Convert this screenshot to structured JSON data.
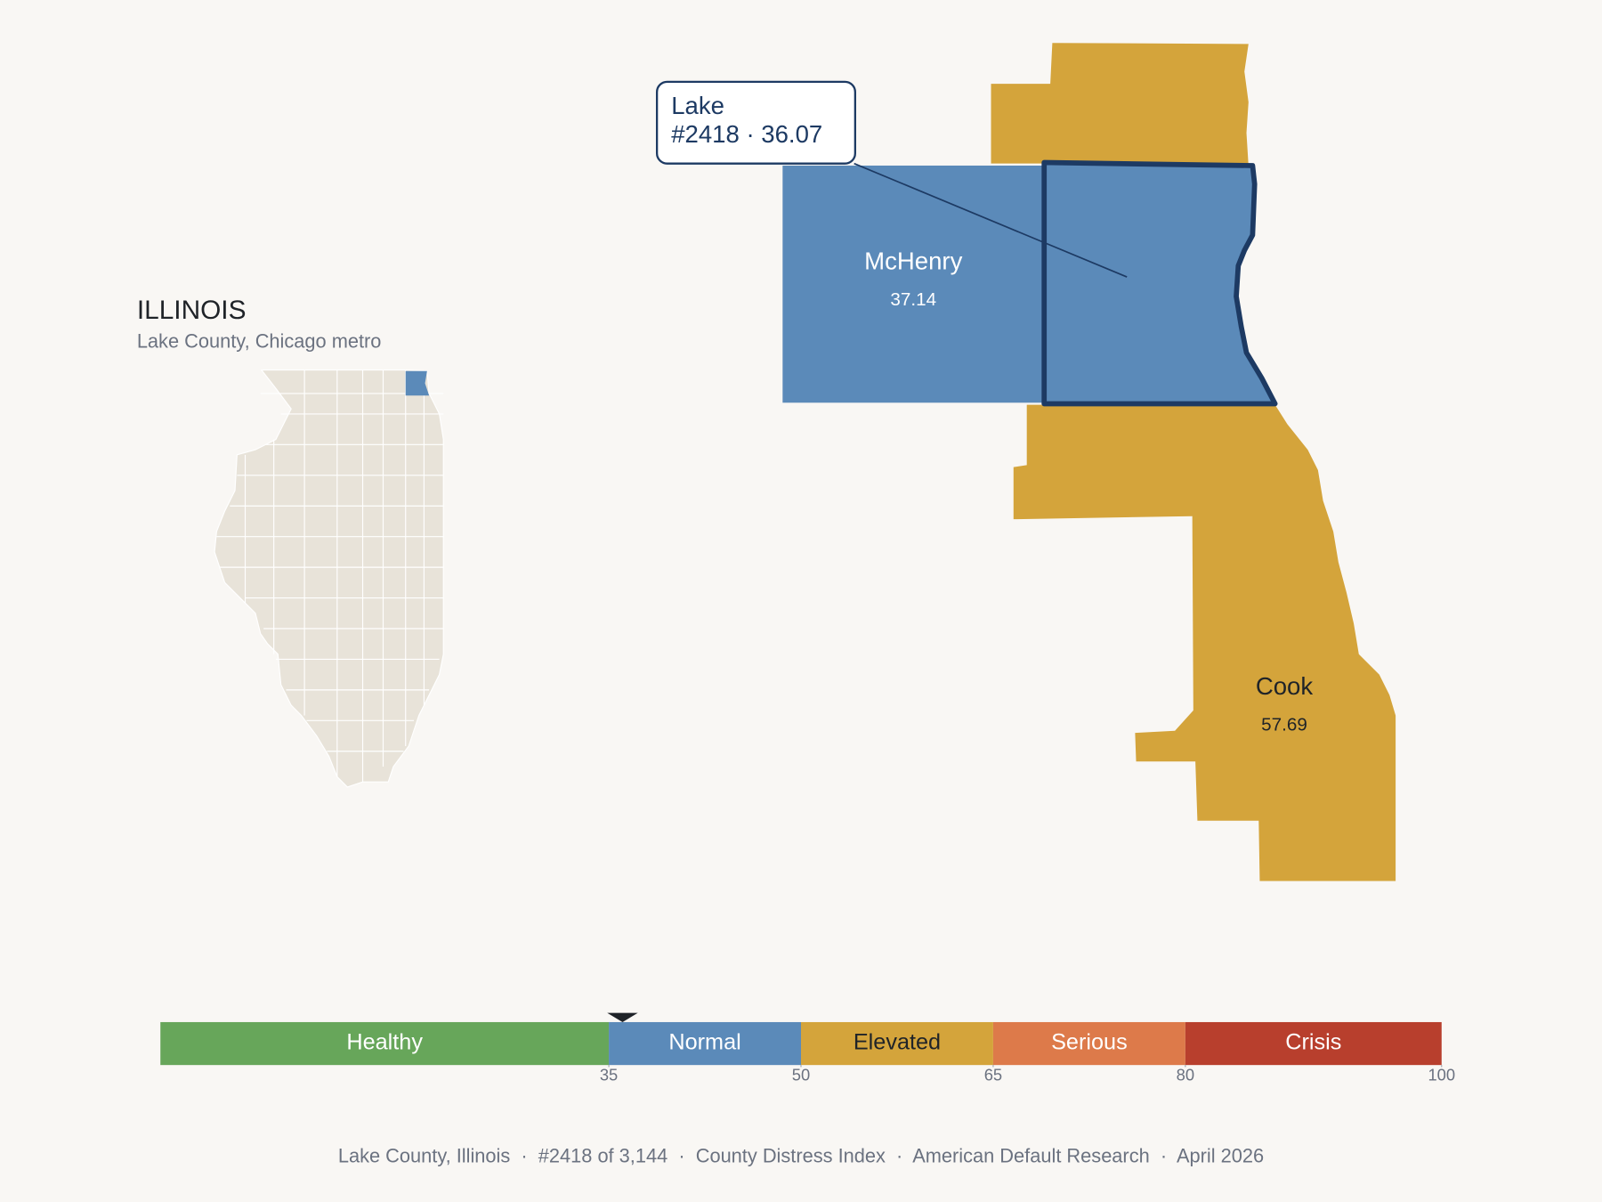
{
  "inset": {
    "title": "ILLINOIS",
    "subtitle": "Lake County, Chicago metro"
  },
  "callout": {
    "name": "Lake",
    "detail": "#2418 · 36.07"
  },
  "counties": [
    {
      "name": "McHenry",
      "value": "37.14"
    },
    {
      "name": "Cook",
      "value": "57.69"
    }
  ],
  "scale": {
    "lim": [
      0,
      100
    ],
    "ticks": [
      35,
      50,
      65,
      80,
      100
    ],
    "marker": 36.07,
    "bands": [
      {
        "name": "Healthy",
        "color": "#67a65a",
        "text_color": "#ffffff"
      },
      {
        "name": "Normal",
        "color": "#5b8ab9",
        "text_color": "#ffffff"
      },
      {
        "name": "Elevated",
        "color": "#d4a43b",
        "text_color": "#1f2328"
      },
      {
        "name": "Serious",
        "color": "#dd7a4a",
        "text_color": "#ffffff"
      },
      {
        "name": "Crisis",
        "color": "#b83f2d",
        "text_color": "#ffffff"
      }
    ]
  },
  "footer": "Lake County, Illinois  ·  #2418 of 3,144  ·  County Distress Index  ·  American Default Research  ·  April 2026"
}
